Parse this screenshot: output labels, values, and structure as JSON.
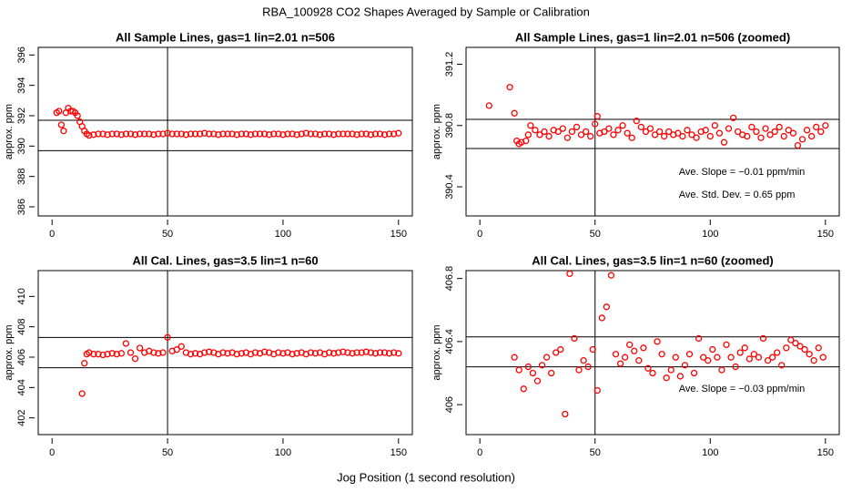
{
  "title": "RBA_100928  CO2 Shapes Averaged by Sample or Calibration",
  "x_label": "Jog Position (1 second resolution)",
  "chart_data": [
    {
      "type": "scatter",
      "title": "All Sample Lines, gas=1 lin=2.01 n=506",
      "y_label": "approx. ppm",
      "color": "#ff0000",
      "xlim": [
        -6,
        156
      ],
      "ylim": [
        385.4,
        396.5
      ],
      "xticks": [
        0,
        50,
        100,
        150
      ],
      "yticks": [
        386,
        388,
        390,
        392,
        394,
        396
      ],
      "hlines": [
        391.7,
        389.7
      ],
      "vlines": [
        50
      ],
      "x": [
        2,
        3,
        4,
        5,
        6,
        7,
        8,
        9,
        10,
        11,
        12,
        13,
        14,
        15,
        16,
        18,
        20,
        22,
        24,
        26,
        28,
        30,
        32,
        34,
        36,
        38,
        40,
        42,
        44,
        46,
        48,
        50,
        52,
        54,
        56,
        58,
        60,
        62,
        64,
        66,
        68,
        70,
        72,
        74,
        76,
        78,
        80,
        82,
        84,
        86,
        88,
        90,
        92,
        94,
        96,
        98,
        100,
        102,
        104,
        106,
        108,
        110,
        112,
        114,
        116,
        118,
        120,
        122,
        124,
        126,
        128,
        130,
        132,
        134,
        136,
        138,
        140,
        142,
        144,
        146,
        148,
        150
      ],
      "values": [
        392.2,
        392.3,
        391.4,
        391.0,
        392.2,
        392.5,
        392.3,
        392.3,
        392.2,
        392.0,
        391.6,
        391.3,
        391.0,
        390.8,
        390.7,
        390.75,
        390.8,
        390.8,
        390.75,
        390.8,
        390.8,
        390.75,
        390.8,
        390.8,
        390.75,
        390.8,
        390.8,
        390.8,
        390.75,
        390.8,
        390.8,
        390.85,
        390.8,
        390.8,
        390.8,
        390.75,
        390.8,
        390.8,
        390.8,
        390.85,
        390.8,
        390.8,
        390.75,
        390.8,
        390.8,
        390.8,
        390.75,
        390.8,
        390.8,
        390.75,
        390.8,
        390.8,
        390.8,
        390.75,
        390.8,
        390.8,
        390.75,
        390.8,
        390.8,
        390.75,
        390.8,
        390.85,
        390.8,
        390.8,
        390.75,
        390.8,
        390.8,
        390.75,
        390.8,
        390.8,
        390.8,
        390.8,
        390.75,
        390.8,
        390.8,
        390.75,
        390.8,
        390.8,
        390.75,
        390.8,
        390.8,
        390.85
      ]
    },
    {
      "type": "scatter",
      "title": "All Sample Lines, gas=1 lin=2.01 n=506 (zoomed)",
      "y_label": "approx. ppm",
      "color": "#ff0000",
      "xlim": [
        -6,
        156
      ],
      "ylim": [
        390.21,
        391.31
      ],
      "xticks": [
        0,
        50,
        100,
        150
      ],
      "yticks": [
        390.4,
        390.8,
        391.2
      ],
      "hlines": [
        390.84,
        390.65
      ],
      "vlines": [
        50
      ],
      "annotations": [
        "Ave. Slope =  −0.01  ppm/min",
        "Ave. Std. Dev. =  0.65  ppm"
      ],
      "x": [
        4,
        13,
        15,
        16,
        17,
        18,
        20,
        21,
        22,
        24,
        26,
        28,
        30,
        32,
        34,
        36,
        38,
        40,
        42,
        44,
        46,
        48,
        50,
        51,
        52,
        54,
        56,
        58,
        60,
        62,
        64,
        66,
        68,
        70,
        72,
        74,
        76,
        78,
        80,
        82,
        84,
        86,
        88,
        90,
        92,
        94,
        96,
        98,
        100,
        102,
        104,
        106,
        108,
        110,
        112,
        114,
        116,
        118,
        120,
        122,
        124,
        126,
        128,
        130,
        132,
        134,
        136,
        138,
        140,
        142,
        144,
        146,
        148,
        150
      ],
      "values": [
        390.93,
        391.05,
        390.88,
        390.7,
        390.68,
        390.69,
        390.7,
        390.74,
        390.8,
        390.77,
        390.74,
        390.76,
        390.73,
        390.77,
        390.76,
        390.78,
        390.72,
        390.76,
        390.79,
        390.74,
        390.76,
        390.73,
        390.81,
        390.86,
        390.75,
        390.76,
        390.78,
        390.74,
        390.77,
        390.8,
        390.75,
        390.72,
        390.83,
        390.79,
        390.76,
        390.78,
        390.74,
        390.76,
        390.73,
        390.76,
        390.74,
        390.75,
        390.73,
        390.77,
        390.74,
        390.72,
        390.76,
        390.77,
        390.73,
        390.8,
        390.75,
        390.69,
        390.78,
        390.85,
        390.76,
        390.74,
        390.73,
        390.79,
        390.76,
        390.72,
        390.78,
        390.74,
        390.76,
        390.79,
        390.73,
        390.77,
        390.75,
        390.67,
        390.71,
        390.77,
        390.73,
        390.79,
        390.76,
        390.8
      ]
    },
    {
      "type": "scatter",
      "title": "All Cal. Lines, gas=3.5 lin=1 n=60",
      "y_label": "approx. ppm",
      "color": "#ff0000",
      "xlim": [
        -6,
        156
      ],
      "ylim": [
        400.9,
        411.7
      ],
      "xticks": [
        0,
        50,
        100,
        150
      ],
      "yticks": [
        402,
        404,
        406,
        408,
        410
      ],
      "hlines": [
        407.3,
        405.3
      ],
      "vlines": [
        50
      ],
      "x": [
        13,
        14,
        15,
        16,
        18,
        20,
        22,
        24,
        26,
        28,
        30,
        32,
        34,
        36,
        38,
        40,
        42,
        44,
        46,
        48,
        50,
        52,
        54,
        56,
        58,
        60,
        62,
        64,
        66,
        68,
        70,
        72,
        74,
        76,
        78,
        80,
        82,
        84,
        86,
        88,
        90,
        92,
        94,
        96,
        98,
        100,
        102,
        104,
        106,
        108,
        110,
        112,
        114,
        116,
        118,
        120,
        122,
        124,
        126,
        128,
        130,
        132,
        134,
        136,
        138,
        140,
        142,
        144,
        146,
        148,
        150
      ],
      "values": [
        403.6,
        405.6,
        406.2,
        406.3,
        406.2,
        406.2,
        406.15,
        406.2,
        406.25,
        406.2,
        406.25,
        406.9,
        406.3,
        405.9,
        406.6,
        406.3,
        406.4,
        406.3,
        406.25,
        406.3,
        407.3,
        406.4,
        406.5,
        406.7,
        406.3,
        406.2,
        406.25,
        406.2,
        406.3,
        406.35,
        406.3,
        406.2,
        406.3,
        406.25,
        406.3,
        406.2,
        406.25,
        406.3,
        406.2,
        406.3,
        406.25,
        406.35,
        406.3,
        406.2,
        406.3,
        406.25,
        406.3,
        406.2,
        406.25,
        406.3,
        406.2,
        406.3,
        406.25,
        406.3,
        406.2,
        406.3,
        406.25,
        406.3,
        406.35,
        406.3,
        406.25,
        406.3,
        406.3,
        406.35,
        406.3,
        406.25,
        406.3,
        406.3,
        406.25,
        406.3,
        406.25
      ]
    },
    {
      "type": "scatter",
      "title": "All Cal. Lines, gas=3.5 lin=1 n=60 (zoomed)",
      "y_label": "approx. ppm",
      "color": "#ff0000",
      "xlim": [
        -6,
        156
      ],
      "ylim": [
        405.81,
        406.85
      ],
      "xticks": [
        0,
        50,
        100,
        150
      ],
      "yticks": [
        406.0,
        406.4,
        406.8
      ],
      "hlines": [
        406.43,
        406.24
      ],
      "vlines": [
        50
      ],
      "annotations": [
        "Ave. Slope =  −0.03  ppm/min"
      ],
      "x": [
        15,
        17,
        19,
        21,
        23,
        25,
        27,
        29,
        31,
        33,
        35,
        37,
        39,
        41,
        43,
        45,
        47,
        49,
        51,
        53,
        55,
        57,
        59,
        61,
        63,
        65,
        67,
        69,
        71,
        73,
        75,
        77,
        79,
        81,
        83,
        85,
        87,
        89,
        91,
        93,
        95,
        97,
        99,
        101,
        103,
        105,
        107,
        109,
        111,
        113,
        115,
        117,
        119,
        121,
        123,
        125,
        127,
        129,
        131,
        133,
        135,
        137,
        139,
        141,
        143,
        145,
        147,
        149
      ],
      "values": [
        406.3,
        406.22,
        406.1,
        406.24,
        406.2,
        406.15,
        406.25,
        406.3,
        406.2,
        406.33,
        406.35,
        405.94,
        406.83,
        406.42,
        406.22,
        406.28,
        406.24,
        406.35,
        406.09,
        406.55,
        406.62,
        406.82,
        406.32,
        406.26,
        406.3,
        406.38,
        406.34,
        406.28,
        406.36,
        406.23,
        406.2,
        406.4,
        406.32,
        406.17,
        406.22,
        406.3,
        406.18,
        406.25,
        406.32,
        406.2,
        406.42,
        406.3,
        406.28,
        406.35,
        406.3,
        406.22,
        406.38,
        406.3,
        406.24,
        406.33,
        406.36,
        406.29,
        406.32,
        406.3,
        406.42,
        406.28,
        406.3,
        406.33,
        406.25,
        406.36,
        406.41,
        406.39,
        406.37,
        406.35,
        406.32,
        406.28,
        406.36,
        406.3
      ]
    }
  ]
}
